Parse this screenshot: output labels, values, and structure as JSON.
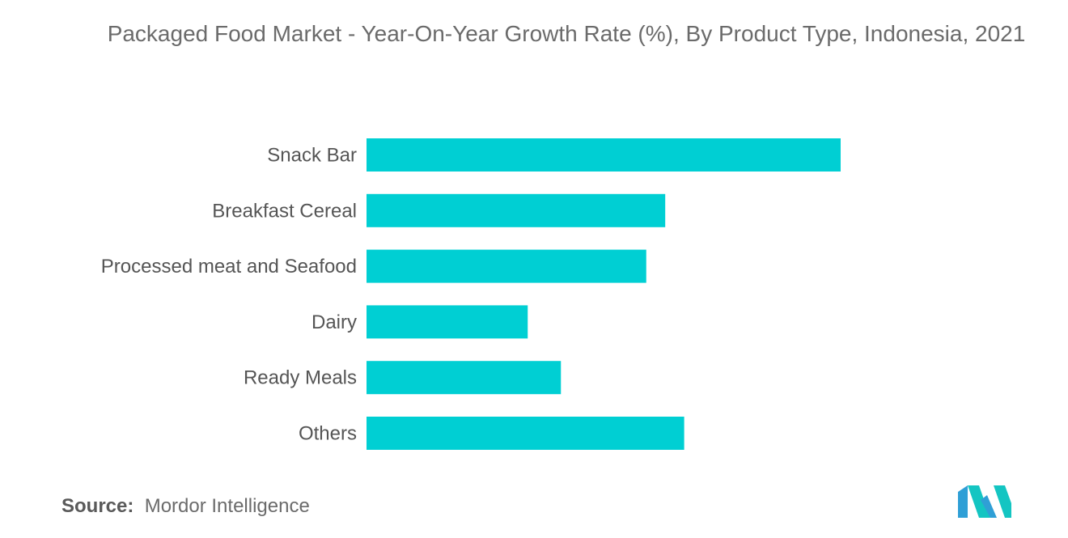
{
  "chart_data": {
    "type": "bar",
    "orientation": "horizontal",
    "title": "Packaged Food Market - Year-On-Year Growth Rate (%), By Product Type, Indonesia, 2021",
    "categories": [
      "Snack Bar",
      "Breakfast Cereal",
      "Processed meat and Seafood",
      "Dairy",
      "Ready Meals",
      "Others"
    ],
    "values": [
      10.0,
      6.3,
      5.9,
      3.4,
      4.1,
      6.7
    ],
    "xlim": [
      0,
      10
    ],
    "grid": false,
    "legend": "none",
    "colors": {
      "bar": "#00cfd3"
    }
  },
  "source": {
    "label": "Source:",
    "value": "Mordor Intelligence"
  },
  "logo": {
    "icon": "mordor-intelligence-logo",
    "colors": [
      "#2f9fd6",
      "#14c5c2"
    ]
  }
}
